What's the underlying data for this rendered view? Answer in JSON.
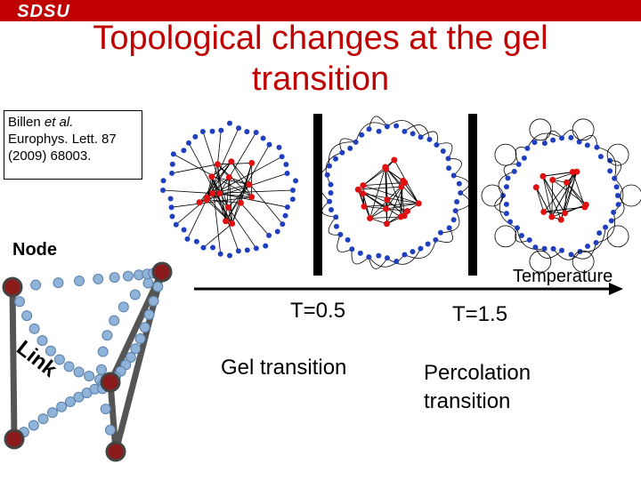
{
  "header": {
    "logo_text": "SDSU",
    "logo_color": "#c00000"
  },
  "slide": {
    "title_line1": "Topological changes at the gel",
    "title_line2": "transition",
    "title_color": "#c00000"
  },
  "citation": {
    "authors": "Billen",
    "etal": "et al.",
    "journal": "Europhys. Lett. 87",
    "ref": "(2009) 68003."
  },
  "labels": {
    "node": "Node",
    "link": "Link",
    "temperature": "Temperature",
    "t_gel": "T=0.5",
    "t_perc": "T=1.5",
    "gel_transition": "Gel transition",
    "percolation_line1": "Percolation",
    "percolation_line2": "transition"
  },
  "colors": {
    "network_blue": "#1f3fbf",
    "network_red": "#e01010",
    "bead_blue": "#8fb3d9",
    "bead_red": "#8b1a1a"
  }
}
